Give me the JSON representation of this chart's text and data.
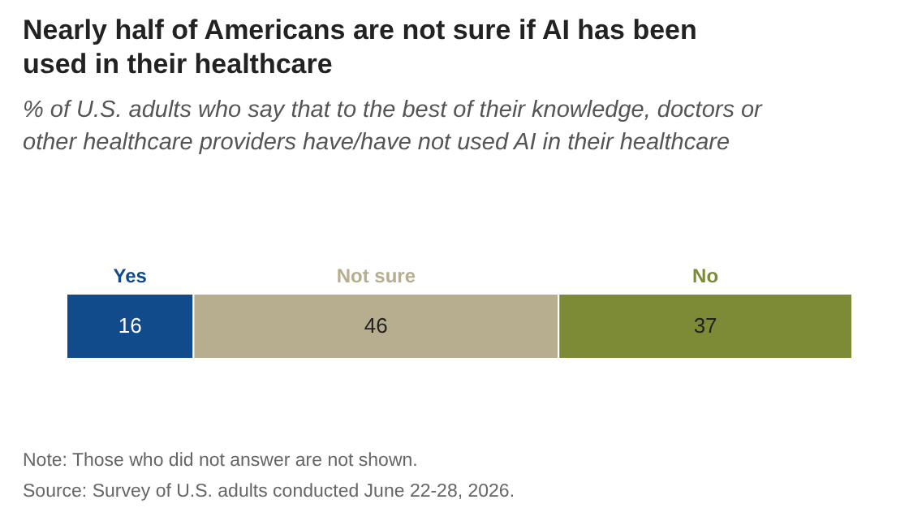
{
  "chart_data": {
    "type": "bar",
    "orientation": "horizontal",
    "stacked": true,
    "title": "Nearly half of Americans are not sure if AI has been used in their healthcare",
    "subtitle": "% of U.S. adults who say that to the best of their knowledge, doctors or other healthcare providers have/have not used AI in their healthcare",
    "categories": [
      null
    ],
    "series": [
      {
        "name": "Yes",
        "color": "#114b8b",
        "values": [
          16
        ]
      },
      {
        "name": "Not sure",
        "color": "#b7ae8f",
        "values": [
          46
        ]
      },
      {
        "name": "No",
        "color": "#7d8b37",
        "values": [
          37
        ]
      }
    ],
    "data_labels": true,
    "annotations": [
      "Note: Those who did not answer are not shown.",
      "Source: Survey of U.S. adults conducted June 22-28, 2026."
    ]
  }
}
